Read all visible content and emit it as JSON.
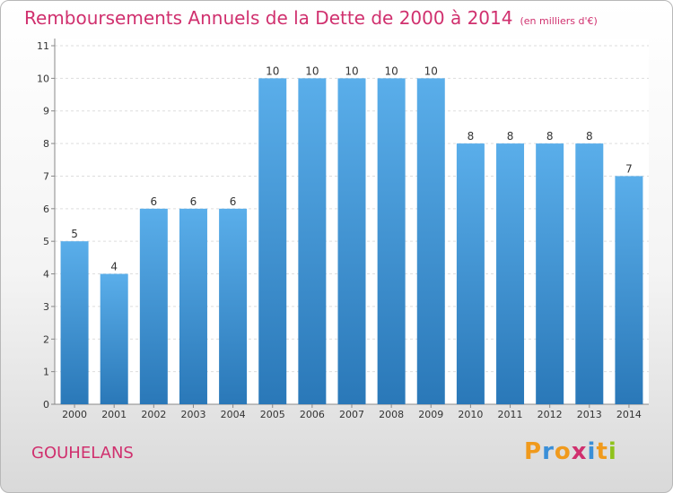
{
  "header": {
    "title": "Remboursements Annuels de la Dette de 2000 à 2014",
    "unit": "(en milliers d'€)"
  },
  "footer": {
    "commune": "GOUHELANS",
    "brand": "Proxiti"
  },
  "colors": {
    "title": "#d0306e",
    "bar_top": "#5aaeea",
    "bar_bottom": "#2a78b8",
    "brand_letters": [
      "#f09a1c",
      "#3a8fd8",
      "#f09a1c",
      "#d0306e",
      "#3a8fd8",
      "#f09a1c",
      "#8fc21c"
    ]
  },
  "chart_data": {
    "type": "bar",
    "categories": [
      "2000",
      "2001",
      "2002",
      "2003",
      "2004",
      "2005",
      "2006",
      "2007",
      "2008",
      "2009",
      "2010",
      "2011",
      "2012",
      "2013",
      "2014"
    ],
    "values": [
      5,
      4,
      6,
      6,
      6,
      10,
      10,
      10,
      10,
      10,
      8,
      8,
      8,
      8,
      7
    ],
    "title": "Remboursements Annuels de la Dette de 2000 à 2014",
    "ylim": [
      0,
      11
    ],
    "yticks": [
      0,
      1,
      2,
      3,
      4,
      5,
      6,
      7,
      8,
      9,
      10,
      11
    ],
    "grid": true,
    "data_labels": true
  }
}
